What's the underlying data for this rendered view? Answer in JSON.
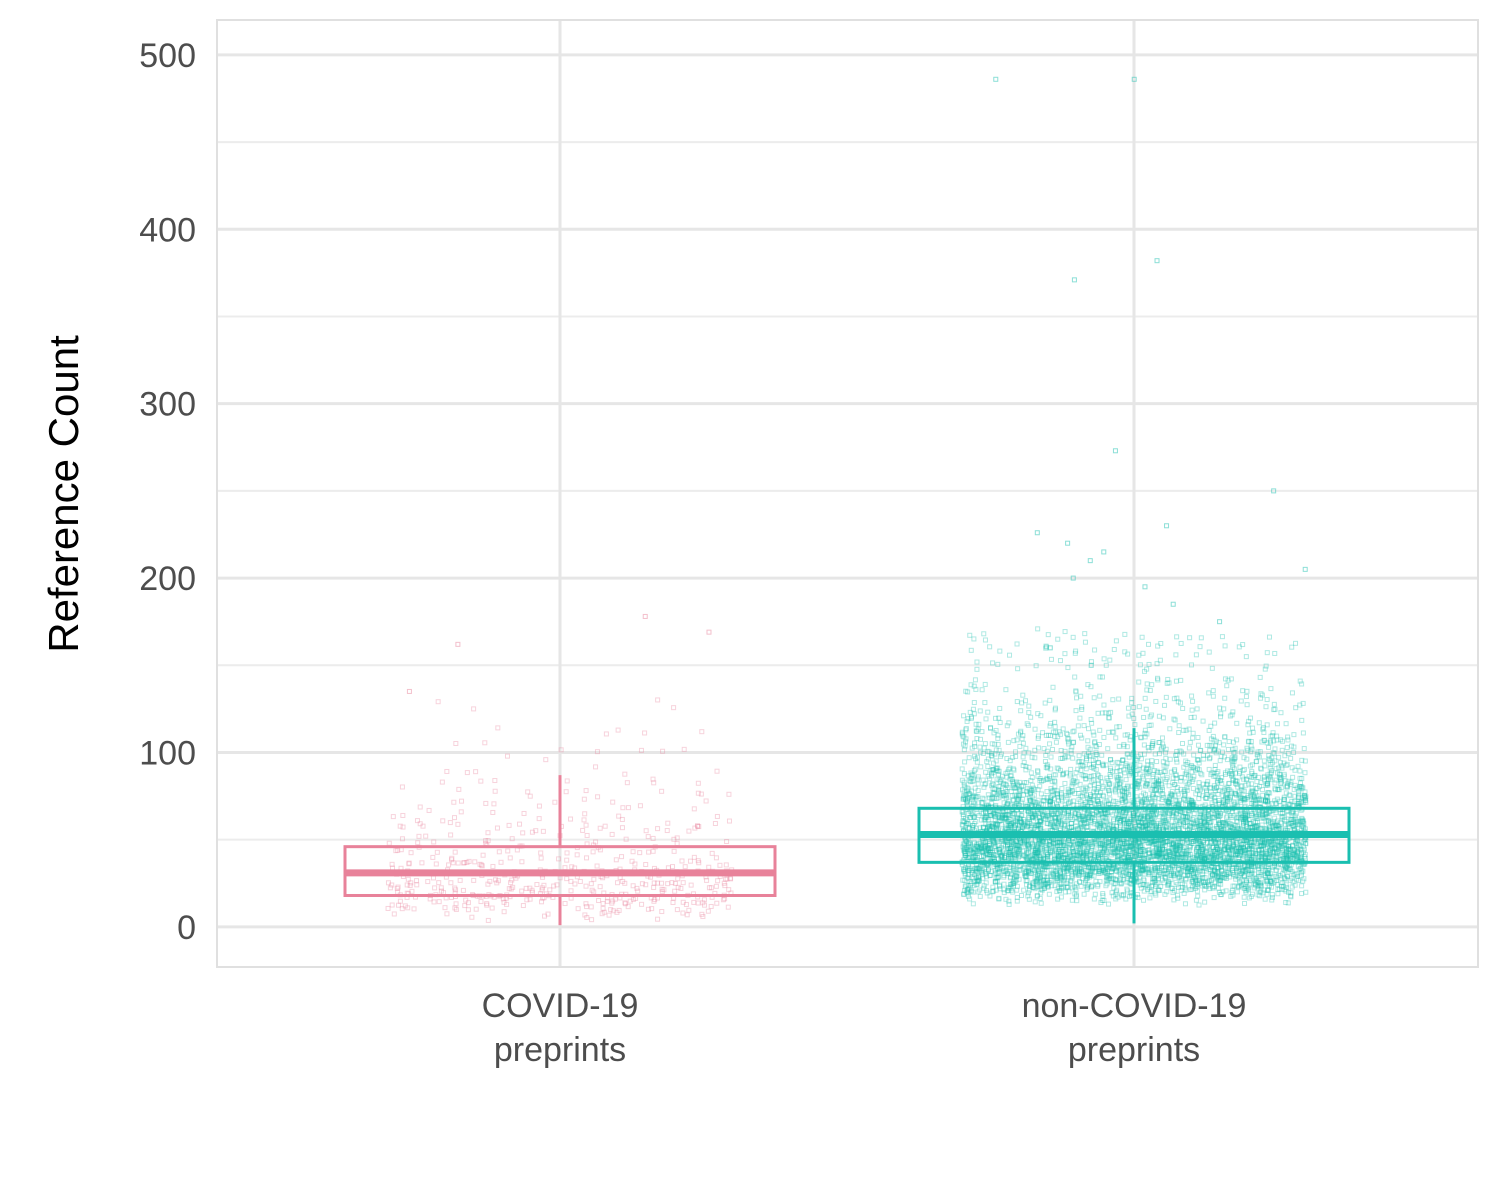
{
  "chart_data": {
    "type": "boxplot",
    "title": "",
    "xlabel": "",
    "ylabel": "Reference Count",
    "ylim": [
      -23,
      520
    ],
    "y_ticks": [
      0,
      100,
      200,
      300,
      400,
      500
    ],
    "grid": true,
    "legend": "none",
    "categories": [
      {
        "line1": "COVID-19",
        "line2": "preprints"
      },
      {
        "line1": "non-COVID-19",
        "line2": "preprints"
      }
    ],
    "series": [
      {
        "category": "COVID-19 preprints",
        "color": "#e8829a",
        "box": {
          "q1": 18,
          "median": 31,
          "q3": 46,
          "whisker_low": 1,
          "whisker_high": 87
        },
        "points_estimated": 500,
        "outliers": [
          135,
          162,
          169,
          178
        ]
      },
      {
        "category": "non-COVID-19 preprints",
        "color": "#1abfb0",
        "box": {
          "q1": 37,
          "median": 53,
          "q3": 68,
          "whisker_low": 2,
          "whisker_high": 114
        },
        "points_estimated": 6000,
        "outliers": [
          150,
          160,
          175,
          185,
          195,
          200,
          205,
          210,
          215,
          220,
          226,
          230,
          250,
          273,
          371,
          382,
          486,
          486
        ]
      }
    ]
  }
}
